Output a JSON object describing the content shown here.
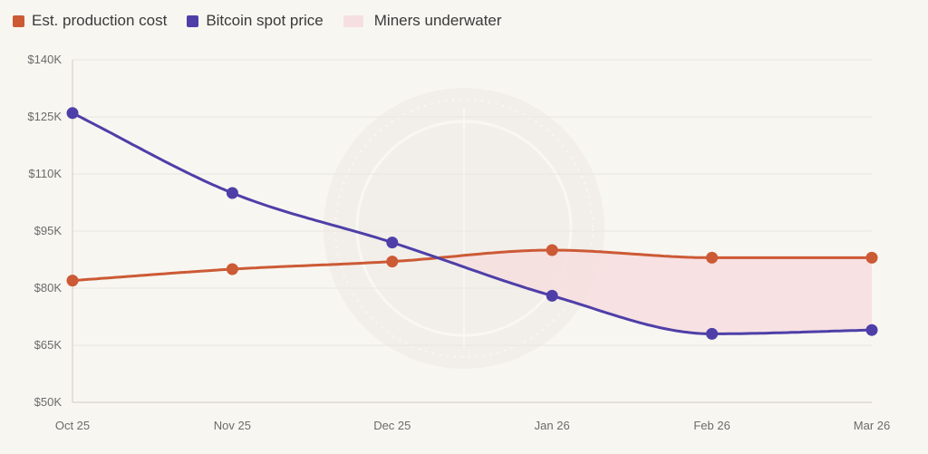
{
  "legend": {
    "items": [
      {
        "label": "Est. production cost",
        "color": "#cc5a35"
      },
      {
        "label": "Bitcoin spot price",
        "color": "#4e3fa8"
      },
      {
        "label": "Miners underwater",
        "color": "#f6dfe0"
      }
    ]
  },
  "chart_data": {
    "type": "line",
    "x": [
      "Oct 25",
      "Nov 25",
      "Dec 25",
      "Jan 26",
      "Feb 26",
      "Mar 26"
    ],
    "series": [
      {
        "name": "Est. production cost",
        "values": [
          82000,
          85000,
          87000,
          90000,
          88000,
          88000
        ],
        "color": "#cc5a35"
      },
      {
        "name": "Bitcoin spot price",
        "values": [
          126000,
          105000,
          92000,
          78000,
          68000,
          69000
        ],
        "color": "#4e3fa8"
      }
    ],
    "area": {
      "name": "Miners underwater",
      "color": "#f6dfe0"
    },
    "yticks": [
      50000,
      65000,
      80000,
      95000,
      110000,
      125000,
      140000
    ],
    "ytick_labels": [
      "$50K",
      "$65K",
      "$80K",
      "$95K",
      "$110K",
      "$125K",
      "$140K"
    ],
    "ylim": [
      50000,
      140000
    ],
    "grid": true,
    "legend_position": "top-left"
  }
}
